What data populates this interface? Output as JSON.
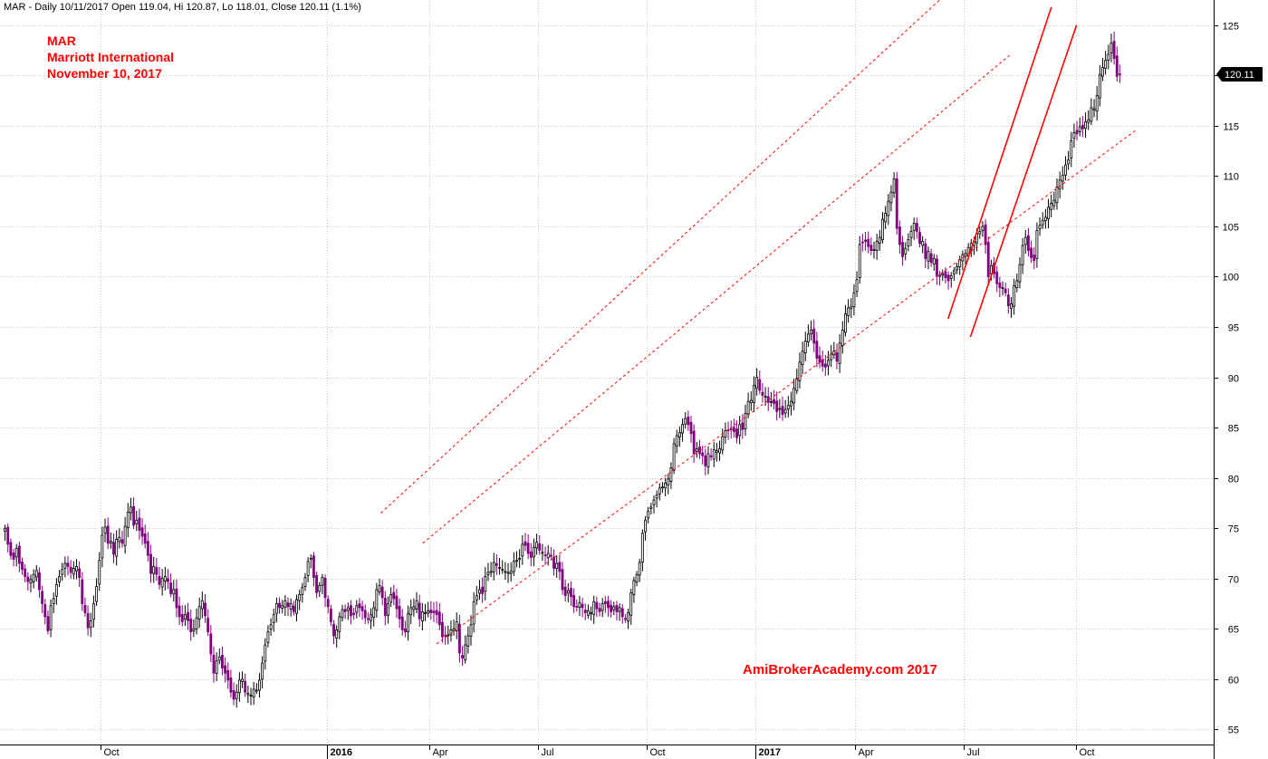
{
  "header": {
    "summary": "MAR - Daily 10/11/2017 Open 119.04, Hi 120.87, Lo 118.01, Close 120.11 (1.1%)"
  },
  "annotation": {
    "lines": [
      "MAR",
      "Marriott International",
      "November 10, 2017"
    ],
    "color": "#ff0000"
  },
  "watermark": {
    "text": "AmiBrokerAcademy.com  2017",
    "color": "#ff0000"
  },
  "last_price": {
    "label": "120.11",
    "value": 120.11,
    "color": "#000000"
  },
  "chart_data": {
    "type": "candlestick",
    "series": [
      {
        "closes": [
          75.0,
          73.4,
          72.3,
          71.9,
          73.0,
          71.5,
          70.9,
          70.2,
          69.7,
          69.9,
          70.4,
          70.8,
          68.9,
          67.5,
          66.2,
          64.8,
          67.3,
          68.0,
          69.4,
          70.2,
          70.9,
          71.5,
          71.2,
          70.6,
          71.0,
          71.2,
          70.1,
          67.5,
          66.6,
          65.1,
          65.8,
          67.5,
          69.2,
          71.8,
          74.3,
          75.1,
          73.5,
          73.7,
          72.4,
          73.9,
          74.1,
          73.5,
          75.2,
          76.6,
          77.1,
          75.3,
          75.8,
          74.8,
          74.2,
          73.5,
          72.3,
          70.5,
          71.2,
          70.4,
          69.4,
          70.0,
          70.2,
          69.7,
          68.5,
          68.9,
          67.1,
          66.2,
          65.7,
          66.4,
          65.8,
          64.7,
          65.0,
          66.1,
          67.2,
          67.8,
          66.3,
          64.7,
          62.5,
          60.6,
          61.8,
          62.2,
          61.1,
          60.6,
          59.9,
          58.7,
          58.0,
          58.7,
          59.9,
          60.0,
          58.7,
          58.6,
          58.4,
          59.0,
          58.9,
          59.9,
          61.6,
          63.4,
          64.7,
          65.4,
          66.4,
          67.5,
          67.1,
          67.3,
          67.8,
          67.2,
          67.5,
          66.7,
          67.9,
          68.4,
          69.1,
          70.1,
          71.7,
          72.0,
          70.1,
          68.6,
          69.3,
          70.1,
          68.1,
          67.2,
          65.7,
          64.3,
          64.9,
          66.2,
          66.9,
          66.7,
          67.1,
          66.3,
          66.4,
          67.3,
          67.1,
          66.8,
          66.1,
          66.0,
          66.4,
          67.1,
          68.9,
          69.3,
          68.1,
          66.3,
          67.5,
          68.4,
          68.0,
          67.0,
          66.0,
          64.9,
          64.7,
          66.5,
          67.1,
          67.2,
          67.8,
          66.0,
          66.7,
          66.6,
          66.8,
          66.6,
          66.6,
          66.4,
          65.4,
          64.2,
          64.3,
          64.4,
          64.9,
          65.0,
          65.7,
          62.6,
          62.1,
          63.4,
          64.3,
          65.4,
          67.7,
          68.3,
          68.9,
          68.5,
          70.2,
          70.6,
          70.7,
          71.6,
          71.3,
          71.1,
          70.9,
          70.7,
          70.6,
          70.7,
          71.7,
          71.8,
          72.0,
          73.4,
          73.3,
          72.5,
          72.1,
          73.1,
          73.6,
          72.8,
          72.6,
          72.3,
          72.5,
          72.2,
          71.0,
          71.5,
          70.7,
          68.9,
          68.3,
          68.8,
          68.2,
          67.2,
          67.2,
          67.6,
          67.1,
          66.6,
          66.8,
          66.6,
          67.7,
          67.0,
          66.7,
          67.5,
          67.5,
          67.1,
          66.7,
          67.2,
          66.7,
          67.1,
          66.2,
          66.0,
          66.6,
          68.6,
          69.8,
          70.4,
          71.6,
          74.5,
          75.8,
          76.7,
          77.1,
          77.8,
          78.3,
          79.0,
          79.1,
          79.5,
          79.9,
          81.0,
          83.4,
          84.2,
          84.5,
          85.3,
          85.9,
          85.3,
          84.4,
          82.4,
          82.9,
          82.4,
          82.2,
          81.2,
          82.4,
          82.1,
          82.8,
          82.7,
          82.9,
          84.1,
          84.7,
          84.7,
          84.8,
          84.6,
          84.0,
          85.3,
          84.8,
          86.4,
          87.6,
          87.7,
          89.2,
          90.0,
          88.7,
          88.2,
          88.1,
          87.5,
          87.6,
          87.4,
          86.6,
          86.9,
          86.3,
          86.8,
          87.2,
          87.6,
          88.9,
          89.9,
          91.5,
          92.6,
          93.6,
          94.3,
          94.7,
          93.4,
          91.9,
          91.5,
          91.1,
          91.0,
          91.7,
          92.3,
          92.6,
          91.6,
          93.4,
          94.7,
          96.3,
          96.9,
          97.0,
          98.4,
          99.7,
          103.2,
          103.4,
          103.5,
          103.0,
          102.6,
          102.7,
          103.5,
          103.9,
          105.7,
          106.3,
          107.5,
          108.4,
          109.7,
          104.8,
          103.2,
          102.0,
          102.8,
          103.7,
          104.5,
          105.3,
          104.5,
          103.3,
          103.5,
          101.8,
          102.5,
          101.4,
          101.8,
          100.1,
          100.0,
          100.3,
          99.9,
          99.6,
          100.1,
          100.6,
          101.0,
          101.7,
          102.2,
          102.3,
          102.9,
          103.3,
          103.5,
          104.3,
          104.5,
          105.0,
          103.2,
          100.0,
          101.1,
          100.3,
          99.3,
          98.9,
          98.9,
          98.4,
          97.1,
          97.3,
          99.1,
          99.6,
          101.2,
          103.1,
          103.9,
          102.6,
          101.9,
          101.6,
          104.6,
          105.1,
          105.6,
          105.9,
          106.9,
          107.3,
          107.6,
          108.9,
          109.6,
          110.1,
          111.1,
          111.6,
          113.5,
          114.3,
          114.2,
          114.9,
          114.7,
          115.4,
          115.6,
          116.8,
          116.7,
          118.0,
          120.1,
          120.8,
          121.5,
          122.1,
          123.2,
          121.7,
          119.9,
          120.1
        ],
        "note": "approximate daily closes read from chart, approx Jul 2015 to Nov 2017"
      }
    ],
    "x_tick_labels": [
      "Oct",
      "2016",
      "Apr",
      "Jul",
      "Oct",
      "2017",
      "Apr",
      "Jul",
      "Oct"
    ],
    "y_ticks": [
      55,
      60,
      65,
      70,
      75,
      80,
      85,
      90,
      95,
      100,
      105,
      110,
      115,
      120,
      125
    ],
    "ylim": [
      53.5,
      127.5
    ],
    "grid": true,
    "trend_lines": [
      {
        "style": "dashed",
        "from": [
          135,
          76.5
        ],
        "to": [
          335,
          127.5
        ]
      },
      {
        "style": "dashed",
        "from": [
          150,
          73.5
        ],
        "to": [
          360,
          122.0
        ]
      },
      {
        "style": "dashed",
        "from": [
          155,
          63.5
        ],
        "to": [
          405,
          114.5
        ]
      },
      {
        "style": "solid",
        "from": [
          338,
          95.8
        ],
        "to": [
          375,
          126.8
        ]
      },
      {
        "style": "solid",
        "from": [
          346,
          94.0
        ],
        "to": [
          384,
          125.0
        ]
      }
    ],
    "colors": {
      "up": "#000000",
      "down": "#800080",
      "trend": "#ff0000"
    }
  }
}
